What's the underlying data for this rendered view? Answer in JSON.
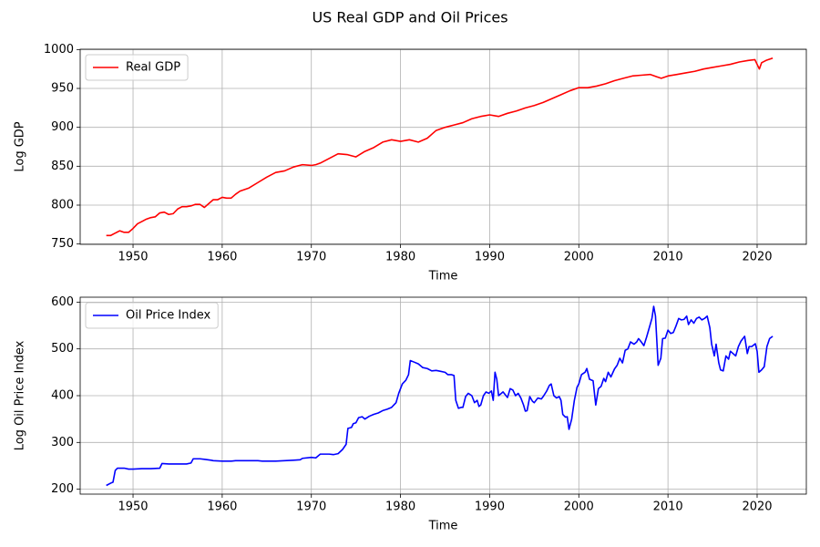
{
  "title": "US Real GDP and Oil Prices",
  "chart_data": [
    {
      "type": "line",
      "xlabel": "Time",
      "ylabel": "Log GDP",
      "xlim": [
        1944.07,
        2025.52
      ],
      "ylim": [
        749.6,
        1000.4
      ],
      "xticks": [
        1950,
        1960,
        1970,
        1980,
        1990,
        2000,
        2010,
        2020
      ],
      "yticks": [
        750,
        800,
        850,
        900,
        950,
        1000
      ],
      "grid": true,
      "legend": "upper left",
      "x": [
        1947,
        1947.5,
        1948,
        1948.5,
        1949,
        1949.5,
        1950,
        1950.5,
        1951,
        1951.5,
        1952,
        1952.5,
        1953,
        1953.5,
        1954,
        1954.5,
        1955,
        1955.5,
        1956,
        1956.5,
        1957,
        1957.5,
        1958,
        1958.5,
        1959,
        1959.5,
        1960,
        1960.5,
        1961,
        1961.5,
        1962,
        1963,
        1964,
        1965,
        1966,
        1967,
        1968,
        1969,
        1970,
        1970.5,
        1971,
        1972,
        1973,
        1974,
        1975,
        1976,
        1977,
        1978,
        1979,
        1980,
        1981,
        1982,
        1983,
        1984,
        1985,
        1986,
        1987,
        1988,
        1989,
        1990,
        1991,
        1992,
        1993,
        1994,
        1995,
        1996,
        1997,
        1998,
        1999,
        2000,
        2001,
        2002,
        2003,
        2004,
        2005,
        2006,
        2007,
        2008,
        2008.75,
        2009.25,
        2010,
        2011,
        2012,
        2013,
        2014,
        2015,
        2016,
        2017,
        2018,
        2019,
        2019.75,
        2020.25,
        2020.5,
        2021,
        2021.75
      ],
      "series": [
        {
          "name": "Real GDP",
          "color": "#ff0000",
          "values": [
            761,
            761,
            764,
            767,
            765,
            765,
            770,
            776,
            779,
            782,
            784,
            785,
            790,
            791,
            788,
            789,
            795,
            798,
            798,
            799,
            801,
            801,
            797,
            802,
            807,
            807,
            810,
            809,
            809,
            814,
            818,
            822,
            829,
            836,
            842,
            844,
            849,
            852,
            851,
            852,
            854,
            860,
            866,
            865,
            862,
            869,
            874,
            881,
            884,
            882,
            884,
            881,
            886,
            896,
            900,
            903,
            906,
            911,
            914,
            916,
            914,
            918,
            921,
            925,
            928,
            932,
            937,
            942,
            947,
            951,
            951,
            953,
            956,
            960,
            963,
            966,
            967,
            968,
            965,
            963,
            966,
            968,
            970,
            972,
            975,
            977,
            979,
            981,
            984,
            986,
            987,
            975,
            983,
            986,
            989
          ]
        }
      ]
    },
    {
      "type": "line",
      "xlabel": "Time",
      "ylabel": "Log Oil Price Index",
      "xlim": [
        1944.07,
        2025.52
      ],
      "ylim": [
        189.5,
        610.5
      ],
      "xticks": [
        1950,
        1960,
        1970,
        1980,
        1990,
        2000,
        2010,
        2020
      ],
      "yticks": [
        200,
        300,
        400,
        500,
        600
      ],
      "grid": true,
      "legend": "upper left",
      "x": [
        1947,
        1947.5,
        1947.75,
        1948,
        1948.25,
        1949,
        1949.5,
        1950,
        1951,
        1952,
        1953,
        1953.25,
        1954,
        1955,
        1956,
        1956.5,
        1956.75,
        1957.5,
        1958,
        1958.75,
        1959,
        1960,
        1961,
        1961.5,
        1963,
        1964,
        1964.5,
        1966,
        1967,
        1968,
        1968.75,
        1969,
        1970,
        1970.5,
        1971,
        1972,
        1972.5,
        1973,
        1973.5,
        1973.9,
        1974.1,
        1974.5,
        1974.7,
        1975,
        1975.3,
        1975.7,
        1976,
        1976.5,
        1977,
        1977.5,
        1978,
        1978.5,
        1979,
        1979.5,
        1979.8,
        1980.2,
        1980.6,
        1980.9,
        1981.1,
        1981.5,
        1982,
        1982.5,
        1983,
        1983.5,
        1984,
        1984.5,
        1985,
        1985.3,
        1985.7,
        1986,
        1986.2,
        1986.5,
        1986.8,
        1987,
        1987.3,
        1987.6,
        1988,
        1988.3,
        1988.6,
        1988.8,
        1989,
        1989.3,
        1989.6,
        1989.9,
        1990.2,
        1990.4,
        1990.6,
        1990.8,
        1991,
        1991.5,
        1992,
        1992.3,
        1992.6,
        1992.9,
        1993.2,
        1993.5,
        1993.8,
        1994,
        1994.2,
        1994.5,
        1994.8,
        1995,
        1995.4,
        1995.8,
        1996,
        1996.4,
        1996.7,
        1996.9,
        1997.2,
        1997.5,
        1997.8,
        1998,
        1998.2,
        1998.5,
        1998.7,
        1998.9,
        1999.2,
        1999.5,
        1999.8,
        2000,
        2000.3,
        2000.7,
        2000.9,
        2001.2,
        2001.6,
        2001.9,
        2002.2,
        2002.5,
        2002.8,
        2003,
        2003.3,
        2003.6,
        2004,
        2004.3,
        2004.6,
        2004.9,
        2005.2,
        2005.5,
        2005.8,
        2006.2,
        2006.5,
        2006.7,
        2007,
        2007.3,
        2007.6,
        2007.9,
        2008.2,
        2008.4,
        2008.6,
        2008.8,
        2008.9,
        2009.2,
        2009.4,
        2009.7,
        2010,
        2010.3,
        2010.6,
        2010.9,
        2011.2,
        2011.5,
        2011.8,
        2012.1,
        2012.3,
        2012.6,
        2012.9,
        2013.2,
        2013.5,
        2013.8,
        2014.1,
        2014.4,
        2014.7,
        2014.9,
        2015.2,
        2015.4,
        2015.7,
        2015.9,
        2016.2,
        2016.5,
        2016.8,
        2017,
        2017.3,
        2017.6,
        2017.9,
        2018.2,
        2018.6,
        2018.9,
        2019.1,
        2019.4,
        2019.8,
        2020,
        2020.2,
        2020.5,
        2020.8,
        2021.1,
        2021.4,
        2021.75
      ],
      "series": [
        {
          "name": "Oil Price Index",
          "color": "#0000ff",
          "values": [
            208,
            213,
            215,
            240,
            245,
            245,
            243,
            243,
            244,
            244,
            245,
            255,
            254,
            254,
            254,
            256,
            265,
            265,
            264,
            262,
            261,
            260,
            260,
            261,
            261,
            261,
            260,
            260,
            261,
            262,
            263,
            266,
            268,
            267,
            275,
            275,
            274,
            276,
            285,
            296,
            330,
            332,
            340,
            342,
            353,
            355,
            350,
            356,
            360,
            363,
            368,
            371,
            375,
            385,
            405,
            425,
            433,
            445,
            475,
            472,
            468,
            460,
            458,
            453,
            454,
            452,
            450,
            445,
            445,
            443,
            390,
            373,
            375,
            375,
            398,
            405,
            400,
            385,
            390,
            377,
            380,
            400,
            408,
            405,
            410,
            390,
            450,
            435,
            400,
            408,
            396,
            415,
            412,
            400,
            405,
            395,
            380,
            367,
            368,
            398,
            388,
            385,
            395,
            393,
            398,
            410,
            422,
            425,
            400,
            395,
            398,
            390,
            360,
            354,
            355,
            328,
            350,
            390,
            418,
            425,
            445,
            450,
            458,
            435,
            432,
            380,
            415,
            420,
            437,
            430,
            450,
            440,
            457,
            465,
            480,
            470,
            497,
            500,
            515,
            510,
            515,
            522,
            515,
            507,
            525,
            545,
            565,
            591,
            570,
            500,
            465,
            480,
            522,
            523,
            540,
            533,
            535,
            549,
            565,
            562,
            563,
            570,
            552,
            562,
            555,
            565,
            568,
            562,
            565,
            570,
            545,
            510,
            485,
            510,
            470,
            455,
            453,
            485,
            478,
            495,
            490,
            485,
            505,
            517,
            527,
            490,
            505,
            505,
            511,
            495,
            450,
            455,
            462,
            505,
            522,
            527
          ]
        }
      ]
    }
  ]
}
